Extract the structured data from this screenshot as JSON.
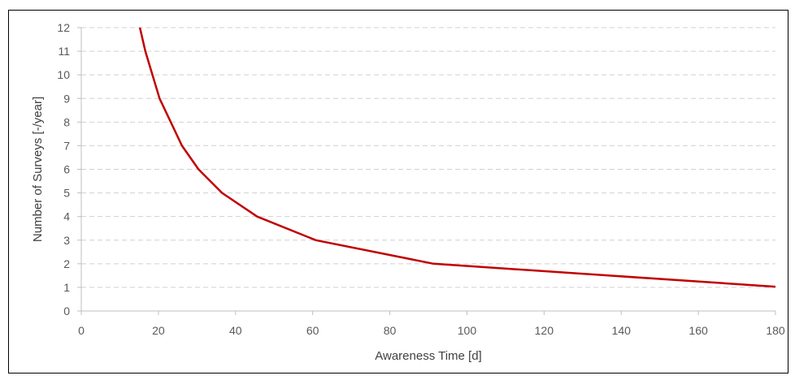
{
  "chart_data": {
    "type": "line",
    "title": "",
    "xlabel": "Awareness Time [d]",
    "ylabel": "Number of Surveys [-/year]",
    "xlim": [
      0,
      180
    ],
    "ylim": [
      0,
      12
    ],
    "x_ticks": [
      0,
      20,
      40,
      60,
      80,
      100,
      120,
      140,
      160,
      180
    ],
    "y_ticks": [
      0,
      1,
      2,
      3,
      4,
      5,
      6,
      7,
      8,
      9,
      10,
      11,
      12
    ],
    "grid": "horizontal-dashed",
    "legend": "none",
    "series": [
      {
        "color": "#C00000",
        "x": [
          15.2,
          16.6,
          20.3,
          26.1,
          30.4,
          36.5,
          45.6,
          60.8,
          91.3,
          182.5
        ],
        "y": [
          12,
          11,
          9,
          7,
          6,
          5,
          4,
          3,
          2,
          1
        ]
      }
    ]
  }
}
